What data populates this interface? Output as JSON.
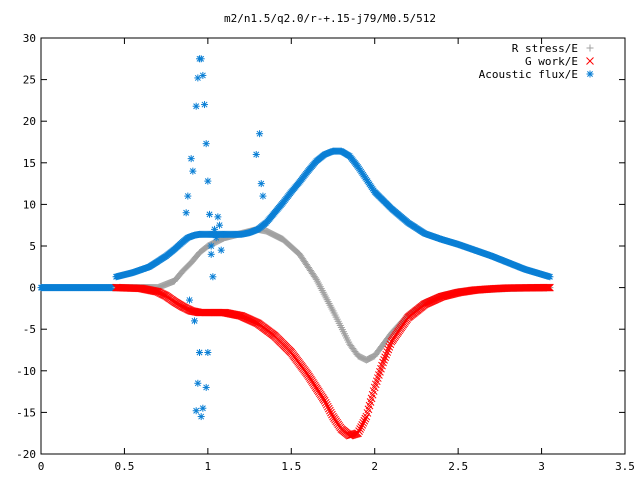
{
  "chart_data": {
    "type": "scatter",
    "title": "m2/n1.5/q2.0/r-+.15-j79/M0.5/512",
    "xlabel": "",
    "ylabel": "",
    "xlim": [
      0,
      3.5
    ],
    "ylim": [
      -20,
      30
    ],
    "x_ticks": [
      0,
      0.5,
      1,
      1.5,
      2,
      2.5,
      3,
      3.5
    ],
    "x_tick_labels": [
      "0",
      "0.5",
      "1",
      "1.5",
      "2",
      "2.5",
      "3",
      "3.5"
    ],
    "y_ticks": [
      -20,
      -15,
      -10,
      -5,
      0,
      5,
      10,
      15,
      20,
      25,
      30
    ],
    "y_tick_labels": [
      "-20",
      "-15",
      "-10",
      "-5",
      "0",
      "5",
      "10",
      "15",
      "20",
      "25",
      "30"
    ],
    "grid": false,
    "legend_position": "top-right",
    "series": [
      {
        "name": "R stress/E",
        "marker": "plus",
        "color": "#a0a0a0",
        "x": [
          0.45,
          0.6,
          0.7,
          0.8,
          0.85,
          0.9,
          0.95,
          1.0,
          1.05,
          1.1,
          1.2,
          1.3,
          1.35,
          1.45,
          1.55,
          1.65,
          1.75,
          1.8,
          1.85,
          1.9,
          1.95,
          2.0,
          2.1,
          2.2,
          2.3,
          2.4,
          2.5,
          2.6,
          2.7,
          2.8,
          2.9,
          3.05
        ],
        "y": [
          0.0,
          0.0,
          0.0,
          0.8,
          2.0,
          3.0,
          4.2,
          5.0,
          5.5,
          6.0,
          6.5,
          7.0,
          6.8,
          5.8,
          4.0,
          1.0,
          -2.8,
          -4.8,
          -6.8,
          -8.2,
          -8.7,
          -8.2,
          -5.5,
          -3.3,
          -1.8,
          -1.0,
          -0.5,
          -0.3,
          -0.2,
          -0.1,
          -0.05,
          0.0
        ]
      },
      {
        "name": "G work/E",
        "marker": "cross",
        "color": "#ff0000",
        "x": [
          0.45,
          0.6,
          0.7,
          0.75,
          0.8,
          0.85,
          0.9,
          0.95,
          1.0,
          1.1,
          1.2,
          1.3,
          1.4,
          1.5,
          1.6,
          1.7,
          1.75,
          1.8,
          1.85,
          1.9,
          1.95,
          2.0,
          2.05,
          2.1,
          2.2,
          2.3,
          2.4,
          2.5,
          2.6,
          2.7,
          2.8,
          3.05
        ],
        "y": [
          0.0,
          -0.1,
          -0.5,
          -1.0,
          -1.7,
          -2.3,
          -2.8,
          -3.0,
          -3.0,
          -3.0,
          -3.4,
          -4.3,
          -5.8,
          -7.8,
          -10.5,
          -13.6,
          -15.5,
          -17.0,
          -17.8,
          -17.5,
          -15.5,
          -12.0,
          -9.0,
          -6.5,
          -3.6,
          -2.0,
          -1.1,
          -0.6,
          -0.3,
          -0.15,
          -0.05,
          0.0
        ]
      },
      {
        "name": "Acoustic flux/E",
        "marker": "star",
        "color": "#0a7fd5",
        "x": [
          0.45,
          0.55,
          0.65,
          0.75,
          0.8,
          0.85,
          0.88,
          0.92,
          0.95,
          1.0,
          1.05,
          1.1,
          1.15,
          1.2,
          1.25,
          1.3,
          1.35,
          1.4,
          1.45,
          1.5,
          1.55,
          1.6,
          1.65,
          1.7,
          1.75,
          1.8,
          1.85,
          1.9,
          1.95,
          2.0,
          2.1,
          2.2,
          2.3,
          2.4,
          2.5,
          2.6,
          2.7,
          2.8,
          2.9,
          3.0,
          3.05
        ],
        "y": [
          1.3,
          1.8,
          2.5,
          3.8,
          4.6,
          5.5,
          6.0,
          6.3,
          6.4,
          6.4,
          6.4,
          6.4,
          6.4,
          6.4,
          6.6,
          7.0,
          7.8,
          9.0,
          10.2,
          11.5,
          12.7,
          14.0,
          15.2,
          16.0,
          16.4,
          16.4,
          15.8,
          14.5,
          13.0,
          11.5,
          9.5,
          7.8,
          6.5,
          5.8,
          5.2,
          4.5,
          3.8,
          3.0,
          2.2,
          1.6,
          1.3
        ]
      }
    ],
    "scattered_flux_points": {
      "series": "Acoustic flux/E",
      "x": [
        0.87,
        0.88,
        0.9,
        0.91,
        0.93,
        0.94,
        0.95,
        0.96,
        0.97,
        0.98,
        0.99,
        1.0,
        1.01,
        1.02,
        1.03,
        1.05,
        1.07,
        1.29,
        1.31,
        1.32,
        1.33,
        0.92,
        0.95,
        0.99,
        1.0,
        0.97,
        0.96,
        0.94,
        0.93,
        0.89,
        1.02,
        1.04,
        1.06,
        1.08
      ],
      "y": [
        9.0,
        11.0,
        15.5,
        14.0,
        21.8,
        25.2,
        27.5,
        27.5,
        25.5,
        22.0,
        17.3,
        12.8,
        8.8,
        4.0,
        1.3,
        6.0,
        7.5,
        16.0,
        18.5,
        12.5,
        11.0,
        -4.0,
        -7.8,
        -12.0,
        -7.8,
        -14.5,
        -15.5,
        -11.5,
        -14.8,
        -1.5,
        5.0,
        7.0,
        8.5,
        4.5
      ]
    }
  }
}
